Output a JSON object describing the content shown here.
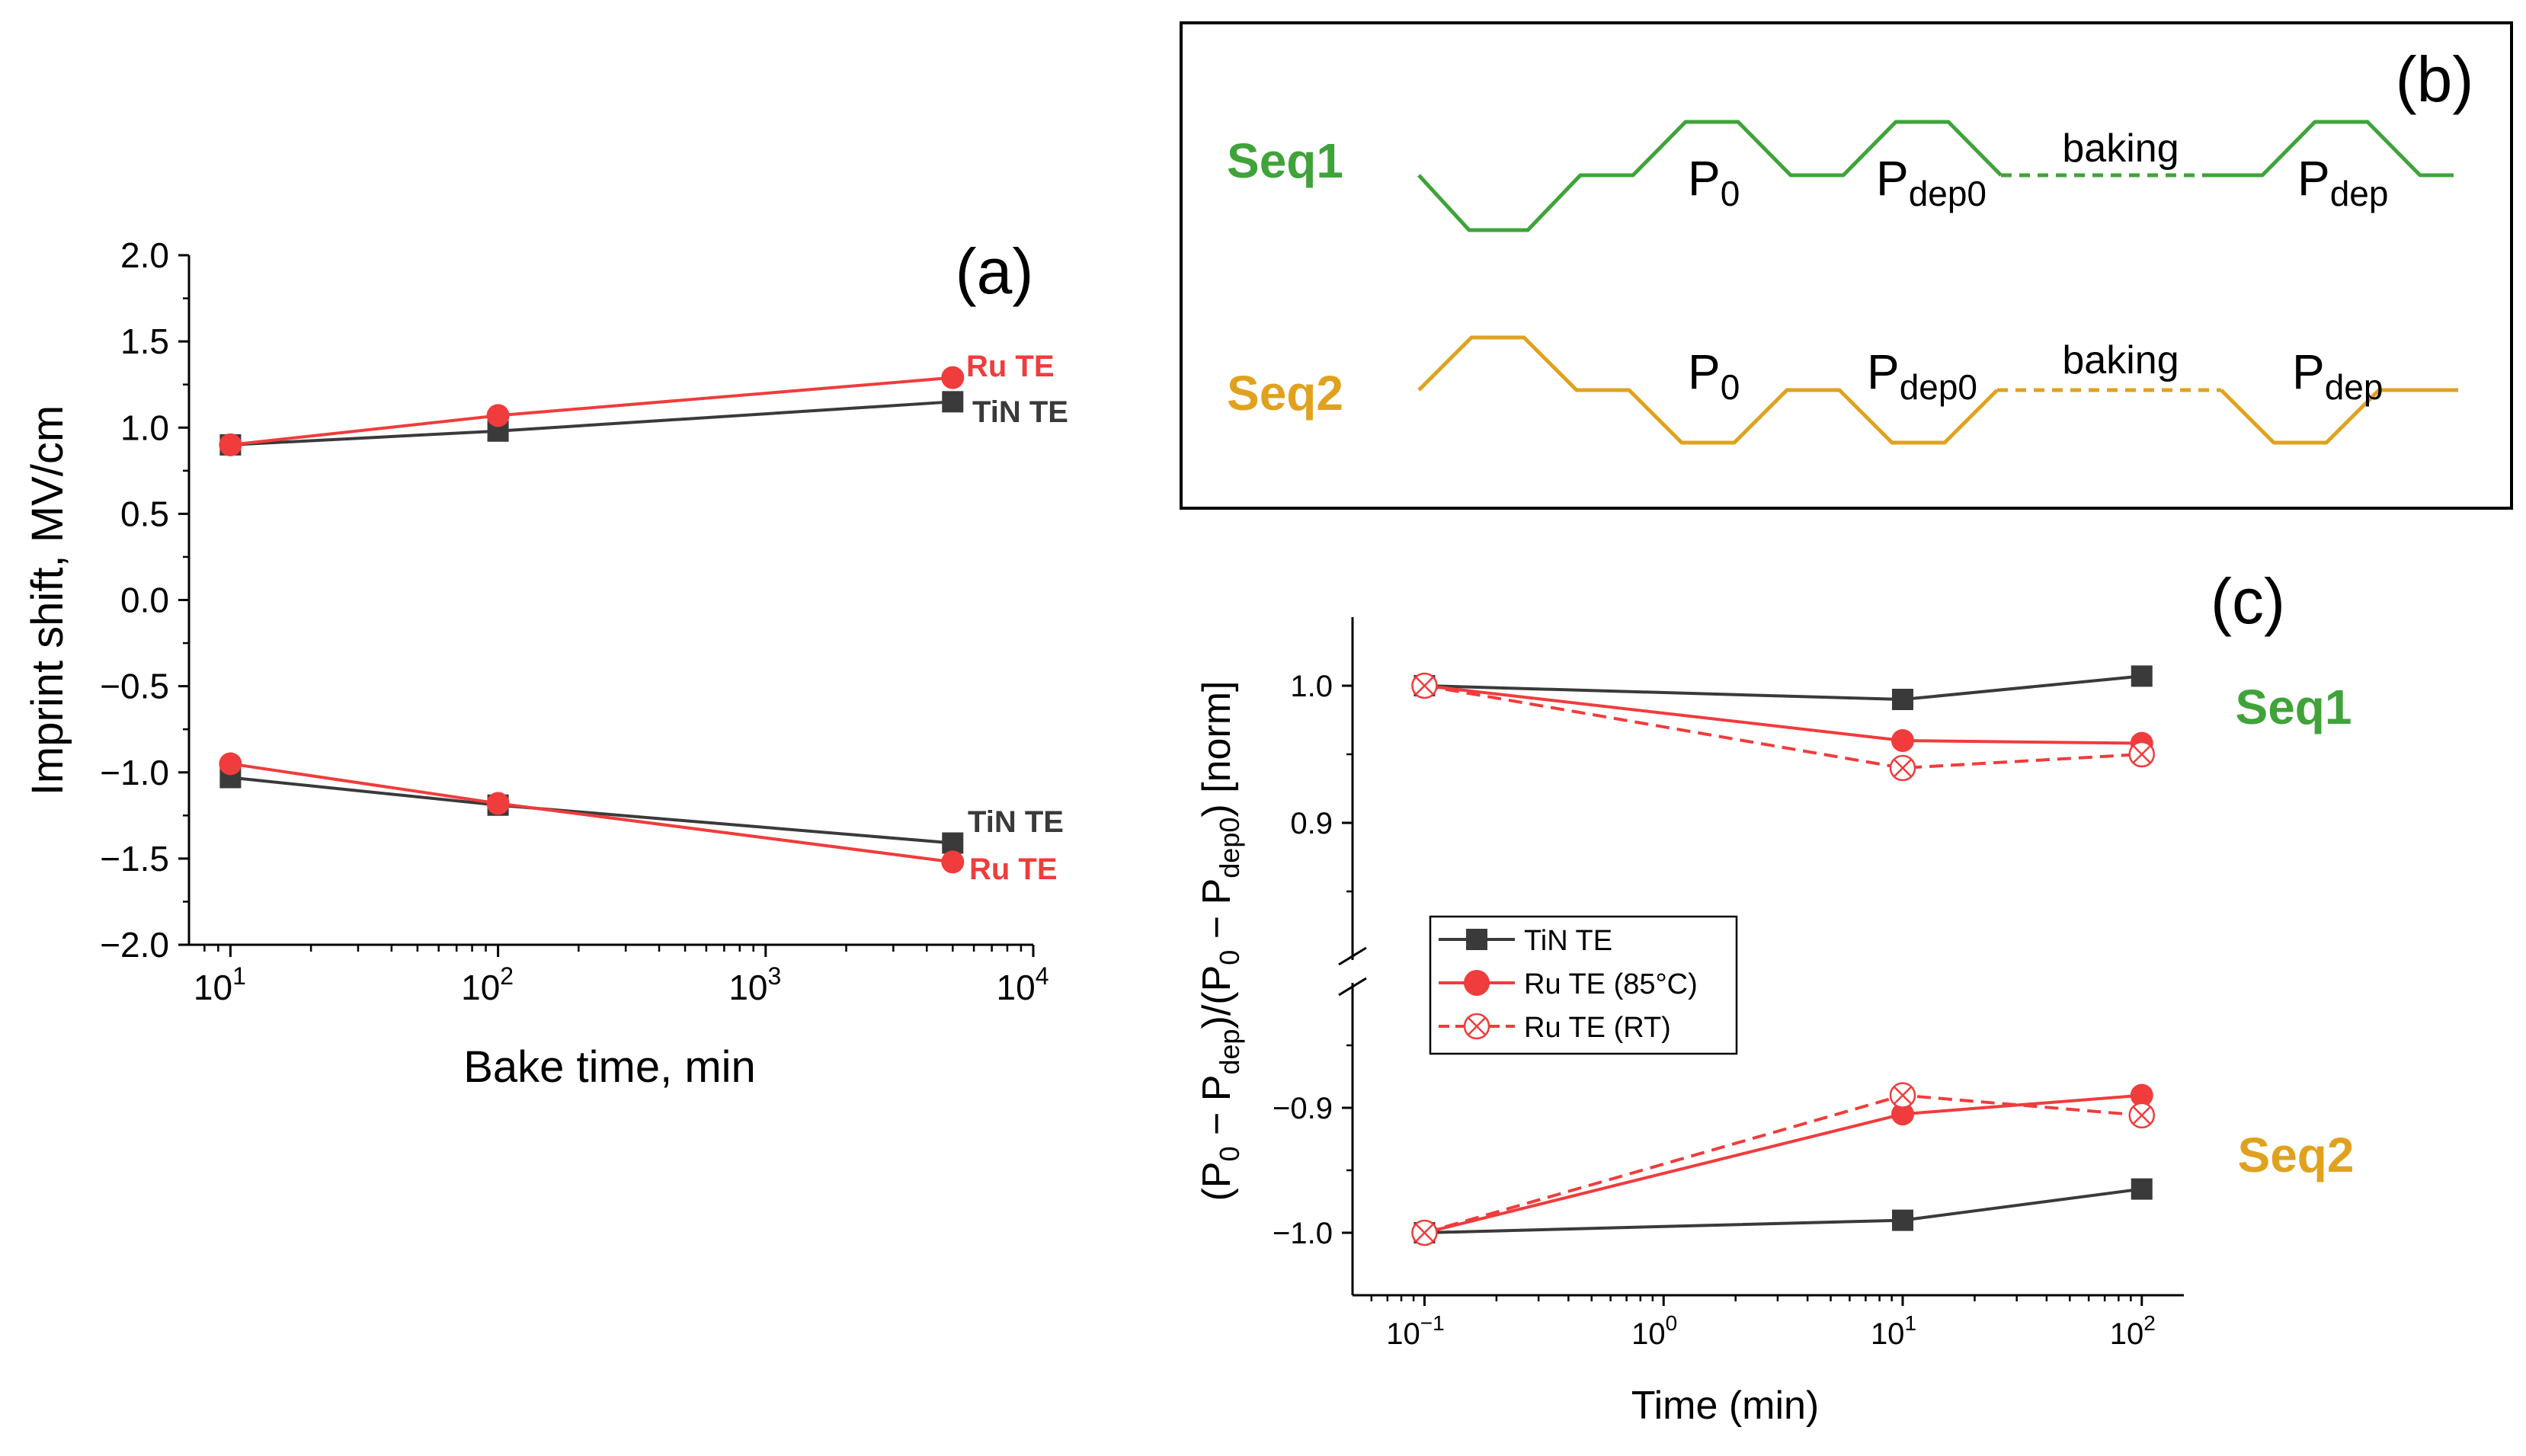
{
  "colors": {
    "tin": "#3a3a3a",
    "ru": "#f03c3c",
    "seq1": "#3fa33a",
    "seq2": "#e0a21e",
    "axis": "#000000"
  },
  "chart_data": [
    {
      "id": "a",
      "type": "line",
      "panel_label": "(a)",
      "xlabel": "Bake time, min",
      "ylabel": "Imprint shift, MV/cm",
      "xscale": "log",
      "xlim": [
        7,
        10000
      ],
      "ylim": [
        -2.0,
        2.0
      ],
      "yticks": [
        "2.0",
        "1.5",
        "1.0",
        "0.5",
        "0.0",
        "−0.5",
        "−1.0",
        "−1.5",
        "−2.0"
      ],
      "ytick_values": [
        2.0,
        1.5,
        1.0,
        0.5,
        0.0,
        -0.5,
        -1.0,
        -1.5,
        -2.0
      ],
      "xtick_base": "10",
      "xtick_exps": [
        "1",
        "2",
        "3",
        "4"
      ],
      "series": [
        {
          "name": "TiN TE (upper)",
          "label": "TiN TE",
          "color_key": "tin",
          "marker": "square",
          "x": [
            10,
            100,
            5000
          ],
          "y": [
            0.9,
            0.98,
            1.15
          ]
        },
        {
          "name": "Ru TE (upper)",
          "label": "Ru TE",
          "color_key": "ru",
          "marker": "circle",
          "x": [
            10,
            100,
            5000
          ],
          "y": [
            0.9,
            1.07,
            1.29
          ]
        },
        {
          "name": "TiN TE (lower)",
          "label": "TiN TE",
          "color_key": "tin",
          "marker": "square",
          "x": [
            10,
            100,
            5000
          ],
          "y": [
            -1.03,
            -1.19,
            -1.41
          ]
        },
        {
          "name": "Ru TE (lower)",
          "label": "Ru TE",
          "color_key": "ru",
          "marker": "circle",
          "x": [
            10,
            100,
            5000
          ],
          "y": [
            -0.95,
            -1.18,
            -1.52
          ]
        }
      ]
    },
    {
      "id": "c",
      "type": "line",
      "panel_label": "(c)",
      "xlabel": "Time (min)",
      "ylabel_parts": [
        "(P",
        "0",
        " − P",
        "dep",
        ")/(P",
        "0",
        " − P",
        "dep0",
        ") [norm]"
      ],
      "xscale": "log",
      "xlim": [
        0.05,
        150
      ],
      "ylim_top": [
        0.8,
        1.05
      ],
      "ylim_bottom": [
        -1.05,
        -0.8
      ],
      "axis_break": true,
      "yticks_top": [
        "1.0",
        "0.9"
      ],
      "ytick_values_top": [
        1.0,
        0.9
      ],
      "yticks_bottom": [
        "−0.9",
        "−1.0"
      ],
      "ytick_values_bottom": [
        -0.9,
        -1.0
      ],
      "xtick_base": "10",
      "xtick_exps": [
        "−1",
        "0",
        "1",
        "2"
      ],
      "annotations": {
        "seq1": "Seq1",
        "seq2": "Seq2"
      },
      "legend": {
        "placement": "center-left",
        "entries": [
          "TiN TE",
          "Ru TE (85°C)",
          "Ru TE (RT)"
        ]
      },
      "series": [
        {
          "name": "TiN TE",
          "group": "Seq1",
          "color_key": "tin",
          "marker": "square",
          "dashed": false,
          "x": [
            0.1,
            10,
            100
          ],
          "y": [
            1.0,
            0.99,
            1.007
          ]
        },
        {
          "name": "Ru TE (85°C)",
          "group": "Seq1",
          "color_key": "ru",
          "marker": "circle",
          "dashed": false,
          "x": [
            0.1,
            10,
            100
          ],
          "y": [
            1.0,
            0.96,
            0.958
          ]
        },
        {
          "name": "Ru TE (RT)",
          "group": "Seq1",
          "color_key": "ru",
          "marker": "crossed-circle",
          "dashed": true,
          "x": [
            0.1,
            10,
            100
          ],
          "y": [
            1.0,
            0.94,
            0.95
          ]
        },
        {
          "name": "TiN TE",
          "group": "Seq2",
          "color_key": "tin",
          "marker": "square",
          "dashed": false,
          "x": [
            0.1,
            10,
            100
          ],
          "y": [
            -1.0,
            -0.99,
            -0.965
          ]
        },
        {
          "name": "Ru TE (85°C)",
          "group": "Seq2",
          "color_key": "ru",
          "marker": "circle",
          "dashed": false,
          "x": [
            0.1,
            10,
            100
          ],
          "y": [
            -1.0,
            -0.905,
            -0.89
          ]
        },
        {
          "name": "Ru TE (RT)",
          "group": "Seq2",
          "color_key": "ru",
          "marker": "crossed-circle",
          "dashed": true,
          "x": [
            0.1,
            10,
            100
          ],
          "y": [
            -1.0,
            -0.89,
            -0.906
          ]
        }
      ]
    }
  ],
  "diagram_b": {
    "panel_label": "(b)",
    "baking_label": "baking",
    "rows": [
      {
        "name": "Seq1",
        "color_key": "seq1",
        "labels": [
          {
            "base": "P",
            "sub": "0"
          },
          {
            "base": "P",
            "sub": "dep0"
          },
          {
            "base": "P",
            "sub": "dep"
          }
        ]
      },
      {
        "name": "Seq2",
        "color_key": "seq2",
        "labels": [
          {
            "base": "P",
            "sub": "0"
          },
          {
            "base": "P",
            "sub": "dep0"
          },
          {
            "base": "P",
            "sub": "dep"
          }
        ]
      }
    ]
  }
}
